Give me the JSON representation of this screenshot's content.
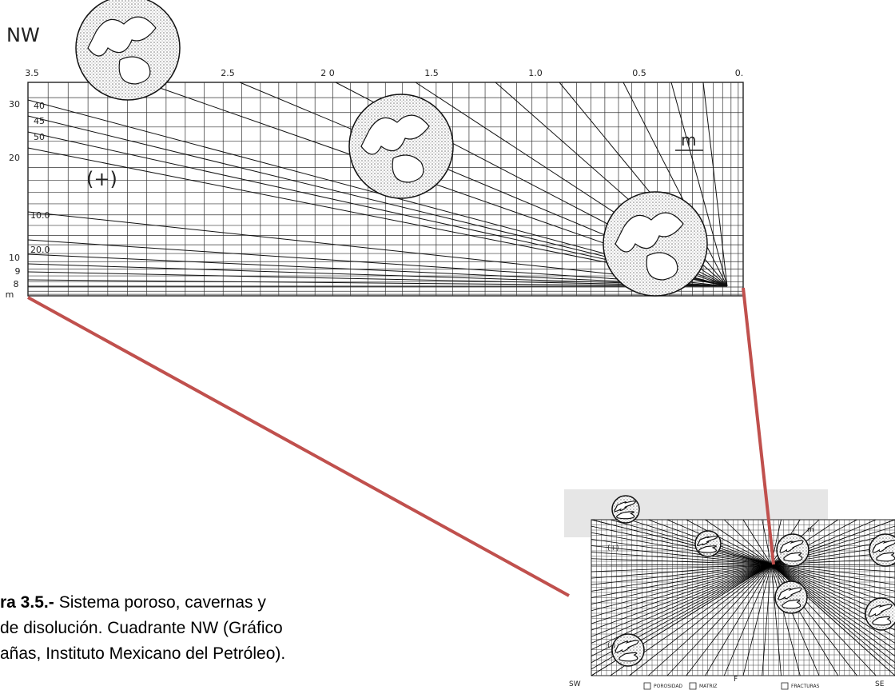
{
  "figure": {
    "region": "NW",
    "top_axis_labels": [
      "3.5",
      "2.5",
      "2 0",
      "1.5",
      "1.0",
      "0.5",
      "0."
    ],
    "left_axis_labels": [
      "30",
      "20",
      "10",
      "9",
      "8",
      "m"
    ],
    "curve_labels": [
      "40",
      "45",
      "50",
      "10.0",
      "20.0"
    ],
    "sign_label": "(+)",
    "m_label": "m",
    "thumbnail": {
      "corner_left": "SW",
      "corner_right": "SE",
      "legend": [
        "POROSIDAD",
        "MATRIZ",
        "FRACTURAS"
      ],
      "plus": "(+)",
      "minus": "(-)",
      "m": "m",
      "f": "F"
    }
  },
  "caption": {
    "label": "ra 3.5.-",
    "lines": [
      "Sistema poroso, cavernas y",
      "de disolución. Cuadrante NW (Gráfico",
      "añas, Instituto Mexicano del Petróleo)."
    ]
  }
}
